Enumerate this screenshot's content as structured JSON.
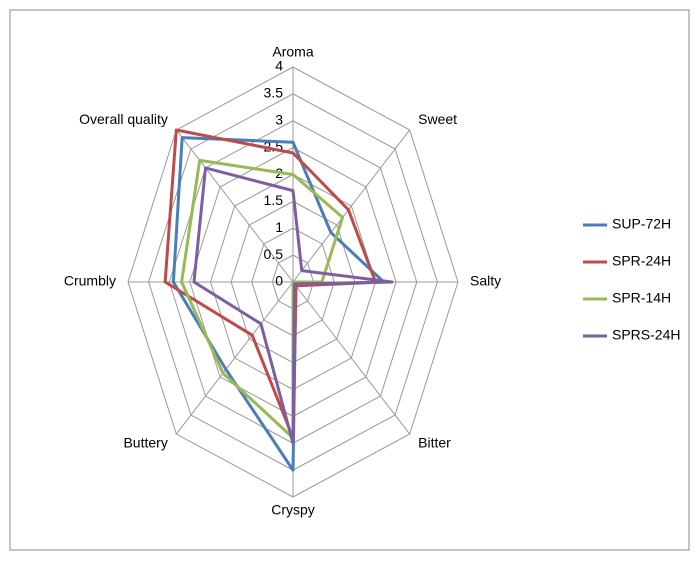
{
  "chart_data": {
    "type": "radar",
    "categories": [
      "Aroma",
      "Sweet",
      "Salty",
      "Bitter",
      "Cryspy",
      "Buttery",
      "Crumbly",
      "Overall quality"
    ],
    "series": [
      {
        "name": "SUP-72H",
        "color": "#4a7ebb",
        "values": [
          2.6,
          1.3,
          2.2,
          0.1,
          3.5,
          2.3,
          2.9,
          3.8
        ]
      },
      {
        "name": "SPR-24H",
        "color": "#be4b48",
        "values": [
          2.4,
          1.9,
          2.0,
          0.1,
          2.9,
          1.4,
          3.1,
          4.0
        ]
      },
      {
        "name": "SPR-14H",
        "color": "#98b954",
        "values": [
          2.0,
          1.7,
          0.7,
          0.0,
          2.9,
          2.4,
          2.7,
          3.2
        ]
      },
      {
        "name": "SPRS-24H",
        "color": "#7d5fa0",
        "values": [
          1.7,
          0.3,
          2.4,
          0.05,
          3.0,
          1.1,
          2.4,
          3.0
        ]
      }
    ],
    "ylim": [
      0,
      4
    ],
    "yticks": [
      0,
      0.5,
      1,
      1.5,
      2,
      2.5,
      3,
      3.5,
      4
    ],
    "grid": true,
    "legend": "right"
  }
}
